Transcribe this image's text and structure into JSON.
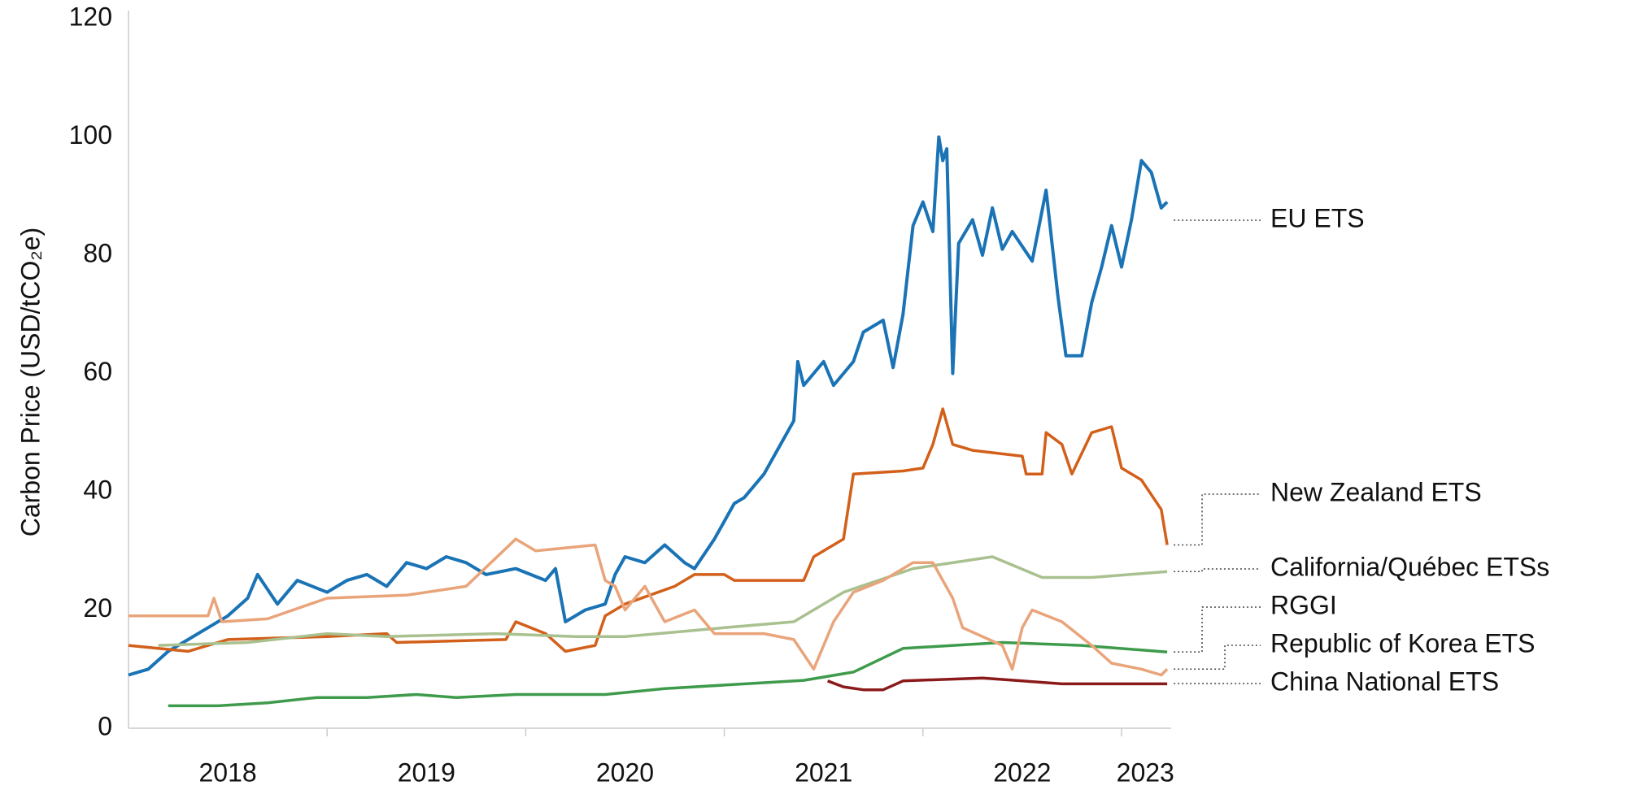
{
  "chart_data": {
    "type": "line",
    "y_label": "Carbon Price (USD/tCO₂e)",
    "xlim": [
      2018,
      2023.25
    ],
    "xticks": [
      {
        "value": 2018.5,
        "label": "2018"
      },
      {
        "value": 2019.5,
        "label": "2019"
      },
      {
        "value": 2020.5,
        "label": "2020"
      },
      {
        "value": 2021.5,
        "label": "2021"
      },
      {
        "value": 2022.5,
        "label": "2022"
      },
      {
        "value": 2023.12,
        "label": "2023"
      }
    ],
    "xtick_marks": [
      2019,
      2020,
      2021,
      2022,
      2023
    ],
    "ylim": [
      0,
      120
    ],
    "yticks": [
      0,
      20,
      40,
      60,
      80,
      100,
      120
    ],
    "grid": false,
    "series": [
      {
        "name": "EU ETS",
        "color": "#1a73b5",
        "x": [
          2018.0,
          2018.1,
          2018.2,
          2018.3,
          2018.4,
          2018.5,
          2018.6,
          2018.65,
          2018.75,
          2018.85,
          2019.0,
          2019.1,
          2019.2,
          2019.3,
          2019.4,
          2019.5,
          2019.6,
          2019.7,
          2019.8,
          2019.95,
          2020.1,
          2020.15,
          2020.2,
          2020.3,
          2020.4,
          2020.45,
          2020.5,
          2020.6,
          2020.7,
          2020.8,
          2020.85,
          2020.95,
          2021.05,
          2021.1,
          2021.2,
          2021.3,
          2021.35,
          2021.37,
          2021.4,
          2021.5,
          2021.55,
          2021.65,
          2021.7,
          2021.8,
          2021.85,
          2021.9,
          2021.95,
          2022.0,
          2022.05,
          2022.08,
          2022.1,
          2022.12,
          2022.15,
          2022.18,
          2022.25,
          2022.3,
          2022.35,
          2022.4,
          2022.45,
          2022.55,
          2022.62,
          2022.68,
          2022.72,
          2022.8,
          2022.85,
          2022.9,
          2022.95,
          2023.0,
          2023.05,
          2023.1,
          2023.15,
          2023.2,
          2023.23
        ],
        "values": [
          9,
          10,
          13,
          15,
          17,
          19,
          22,
          26,
          21,
          25,
          23,
          25,
          26,
          24,
          28,
          27,
          29,
          28,
          26,
          27,
          25,
          27,
          18,
          20,
          21,
          26,
          29,
          28,
          31,
          28,
          27,
          32,
          38,
          39,
          43,
          49,
          52,
          62,
          58,
          62,
          58,
          62,
          67,
          69,
          61,
          70,
          85,
          89,
          84,
          100,
          96,
          98,
          60,
          82,
          86,
          80,
          88,
          81,
          84,
          79,
          91,
          73,
          63,
          63,
          72,
          78,
          85,
          78,
          86,
          96,
          94,
          88,
          89
        ]
      },
      {
        "name": "New Zealand ETS",
        "color": "#d2601a",
        "x": [
          2018.0,
          2018.3,
          2018.5,
          2019.0,
          2019.3,
          2019.35,
          2019.9,
          2019.95,
          2020.1,
          2020.2,
          2020.35,
          2020.4,
          2020.5,
          2020.75,
          2020.85,
          2021.0,
          2021.05,
          2021.4,
          2021.45,
          2021.6,
          2021.65,
          2021.9,
          2022.0,
          2022.05,
          2022.1,
          2022.15,
          2022.25,
          2022.5,
          2022.52,
          2022.6,
          2022.62,
          2022.7,
          2022.75,
          2022.85,
          2022.95,
          2023.0,
          2023.1,
          2023.2,
          2023.23
        ],
        "values": [
          14,
          13,
          15,
          15.5,
          16,
          14.5,
          15,
          18,
          16,
          13,
          14,
          19,
          21,
          24,
          26,
          26,
          25,
          25,
          29,
          32,
          43,
          43.5,
          44,
          48,
          54,
          48,
          47,
          46,
          43,
          43,
          50,
          48,
          43,
          50,
          51,
          44,
          42,
          37,
          31
        ]
      },
      {
        "name": "California/Québec ETSs",
        "color": "#a9c08f",
        "x": [
          2018.15,
          2018.6,
          2019.0,
          2019.3,
          2019.85,
          2020.25,
          2020.5,
          2021.0,
          2021.35,
          2021.6,
          2021.95,
          2022.35,
          2022.6,
          2022.85,
          2023.23
        ],
        "values": [
          14,
          14.5,
          16,
          15.5,
          16,
          15.5,
          15.5,
          17,
          18,
          23,
          27,
          29,
          25.5,
          25.5,
          26.5
        ]
      },
      {
        "name": "RGGI",
        "color": "#3f9b4c",
        "x": [
          2018.2,
          2018.45,
          2018.7,
          2018.95,
          2019.2,
          2019.45,
          2019.65,
          2019.95,
          2020.4,
          2020.7,
          2021.0,
          2021.4,
          2021.65,
          2021.9,
          2022.4,
          2022.8,
          2023.23
        ],
        "values": [
          3.8,
          3.8,
          4.3,
          5.2,
          5.2,
          5.7,
          5.2,
          5.7,
          5.7,
          6.7,
          7.3,
          8.1,
          9.5,
          13.5,
          14.5,
          14,
          12.9
        ]
      },
      {
        "name": "Republic of Korea ETS",
        "color": "#e9a47a",
        "x": [
          2018.0,
          2018.4,
          2018.43,
          2018.47,
          2018.7,
          2019.0,
          2019.4,
          2019.7,
          2019.95,
          2020.05,
          2020.35,
          2020.4,
          2020.45,
          2020.5,
          2020.6,
          2020.7,
          2020.85,
          2020.95,
          2021.2,
          2021.35,
          2021.45,
          2021.55,
          2021.65,
          2021.8,
          2021.95,
          2022.05,
          2022.15,
          2022.2,
          2022.4,
          2022.45,
          2022.5,
          2022.55,
          2022.7,
          2022.85,
          2022.95,
          2023.1,
          2023.2,
          2023.23
        ],
        "values": [
          19,
          19,
          22,
          18,
          18.5,
          22,
          22.5,
          24,
          32,
          30,
          31,
          25,
          24,
          20,
          24,
          18,
          20,
          16,
          16,
          15,
          10,
          18,
          23,
          25,
          28,
          28,
          22,
          17,
          14,
          10,
          17,
          20,
          18,
          14,
          11,
          10,
          9,
          10
        ]
      },
      {
        "name": "China National ETS",
        "color": "#8b1a1a",
        "x": [
          2021.52,
          2021.6,
          2021.7,
          2021.8,
          2021.9,
          2022.3,
          2022.5,
          2022.7,
          2023.0,
          2023.23
        ],
        "values": [
          8,
          7,
          6.5,
          6.5,
          8,
          8.5,
          8,
          7.5,
          7.5,
          7.5
        ]
      }
    ]
  }
}
